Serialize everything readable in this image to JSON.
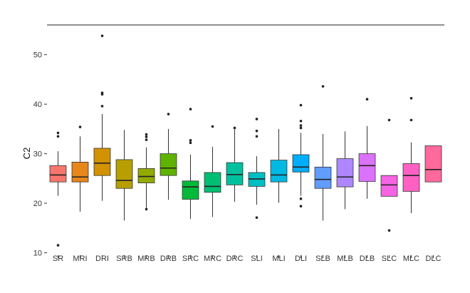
{
  "chart_data": {
    "type": "boxplot",
    "title": "",
    "xlabel": "",
    "ylabel": "C2",
    "ylim": [
      9.5,
      56
    ],
    "yticks": [
      10,
      20,
      30,
      40,
      50
    ],
    "grid": false,
    "legend": "none",
    "categories": [
      "SR",
      "MRI",
      "DRI",
      "SRB",
      "MRB",
      "DRB",
      "SRC",
      "MRC",
      "DRC",
      "SLI",
      "MLI",
      "DLI",
      "SLB",
      "MLB",
      "DLB",
      "SLC",
      "MLC",
      "DLC"
    ],
    "colors": [
      "#F8766D",
      "#E7861A",
      "#D39200",
      "#B79F00",
      "#93AA00",
      "#5EB300",
      "#00BA38",
      "#00BF74",
      "#00C19F",
      "#00BFC4",
      "#00B9E3",
      "#00ADFA",
      "#619CFF",
      "#AE87FF",
      "#DB72FB",
      "#F564E3",
      "#FF61C3",
      "#FF699C"
    ],
    "boxes": [
      {
        "min": 21.5,
        "q1": 24.3,
        "median": 25.7,
        "q3": 27.6,
        "max": 30.5,
        "outliers": [
          11.5,
          33.5,
          34.2
        ]
      },
      {
        "min": 18.3,
        "q1": 24.3,
        "median": 25.3,
        "q3": 28.3,
        "max": 33.5,
        "outliers": [
          35.4
        ]
      },
      {
        "min": 20.5,
        "q1": 25.6,
        "median": 28.1,
        "q3": 31.1,
        "max": 38,
        "outliers": [
          39.6,
          42,
          42.3,
          53.8
        ]
      },
      {
        "min": 16.5,
        "q1": 23,
        "median": 24.6,
        "q3": 28.8,
        "max": 34.8,
        "outliers": []
      },
      {
        "min": 18.8,
        "q1": 24.1,
        "median": 25.4,
        "q3": 27,
        "max": 31.3,
        "outliers": [
          18.8,
          32.8,
          33.4,
          33.9
        ]
      },
      {
        "min": 20.7,
        "q1": 25.6,
        "median": 27.1,
        "q3": 30,
        "max": 35,
        "outliers": [
          38
        ]
      },
      {
        "min": 16.8,
        "q1": 20.8,
        "median": 23.3,
        "q3": 24.5,
        "max": 29.8,
        "outliers": [
          32.2,
          32.7,
          39
        ]
      },
      {
        "min": 17.2,
        "q1": 22.2,
        "median": 23.4,
        "q3": 26.2,
        "max": 31.4,
        "outliers": [
          35.5
        ]
      },
      {
        "min": 20.3,
        "q1": 23.7,
        "median": 25.8,
        "q3": 28.2,
        "max": 34.9,
        "outliers": [
          35.2
        ]
      },
      {
        "min": 19.7,
        "q1": 23.4,
        "median": 24.9,
        "q3": 26.2,
        "max": 29.5,
        "outliers": [
          17.1,
          33.5,
          34.6,
          37
        ]
      },
      {
        "min": 20.1,
        "q1": 24.3,
        "median": 25.7,
        "q3": 28.7,
        "max": 35,
        "outliers": []
      },
      {
        "min": 21.5,
        "q1": 26.3,
        "median": 27.3,
        "q3": 29.8,
        "max": 34.2,
        "outliers": [
          19.4,
          20.9,
          35.2,
          35.7,
          36.6,
          39.8
        ]
      },
      {
        "min": 16.5,
        "q1": 23,
        "median": 24.8,
        "q3": 27.3,
        "max": 34,
        "outliers": [
          43.6
        ]
      },
      {
        "min": 18.8,
        "q1": 23.3,
        "median": 25.3,
        "q3": 29,
        "max": 34.5,
        "outliers": []
      },
      {
        "min": 20.9,
        "q1": 24.4,
        "median": 27.6,
        "q3": 30,
        "max": 35.6,
        "outliers": [
          41
        ]
      },
      {
        "min": 21.4,
        "q1": 21.4,
        "median": 23.7,
        "q3": 25.6,
        "max": 25.6,
        "outliers": [
          14.5,
          36.8
        ]
      },
      {
        "min": 18,
        "q1": 22.4,
        "median": 25.6,
        "q3": 28,
        "max": 32.3,
        "outliers": [
          36.8,
          41.2
        ]
      },
      {
        "min": 24.3,
        "q1": 24.3,
        "median": 26.8,
        "q3": 31.6,
        "max": 31.6,
        "outliers": []
      }
    ]
  }
}
